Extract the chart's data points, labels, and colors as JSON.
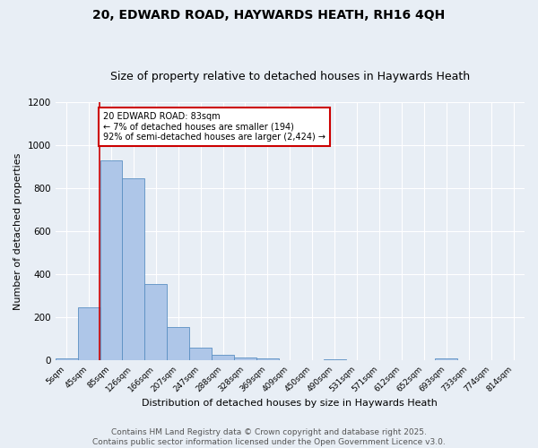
{
  "title1": "20, EDWARD ROAD, HAYWARDS HEATH, RH16 4QH",
  "title2": "Size of property relative to detached houses in Haywards Heath",
  "xlabel": "Distribution of detached houses by size in Haywards Heath",
  "ylabel": "Number of detached properties",
  "bin_labels": [
    "5sqm",
    "45sqm",
    "85sqm",
    "126sqm",
    "166sqm",
    "207sqm",
    "247sqm",
    "288sqm",
    "328sqm",
    "369sqm",
    "409sqm",
    "450sqm",
    "490sqm",
    "531sqm",
    "571sqm",
    "612sqm",
    "652sqm",
    "693sqm",
    "733sqm",
    "774sqm",
    "814sqm"
  ],
  "bar_values": [
    10,
    248,
    930,
    845,
    355,
    158,
    62,
    28,
    13,
    12,
    4,
    0,
    5,
    0,
    0,
    0,
    0,
    12,
    0,
    0,
    0
  ],
  "bar_color": "#aec6e8",
  "bar_edge_color": "#5a8fc2",
  "red_line_color": "#cc0000",
  "annotation_text": "20 EDWARD ROAD: 83sqm\n← 7% of detached houses are smaller (194)\n92% of semi-detached houses are larger (2,424) →",
  "annotation_box_color": "#ffffff",
  "annotation_box_edge": "#cc0000",
  "ylim": [
    0,
    1200
  ],
  "yticks": [
    0,
    200,
    400,
    600,
    800,
    1000,
    1200
  ],
  "footer_text": "Contains HM Land Registry data © Crown copyright and database right 2025.\nContains public sector information licensed under the Open Government Licence v3.0.",
  "bg_color": "#e8eef5",
  "grid_color": "#ffffff",
  "title_fontsize": 10,
  "subtitle_fontsize": 9,
  "axis_label_fontsize": 8,
  "tick_fontsize": 7.5,
  "footer_fontsize": 6.5
}
